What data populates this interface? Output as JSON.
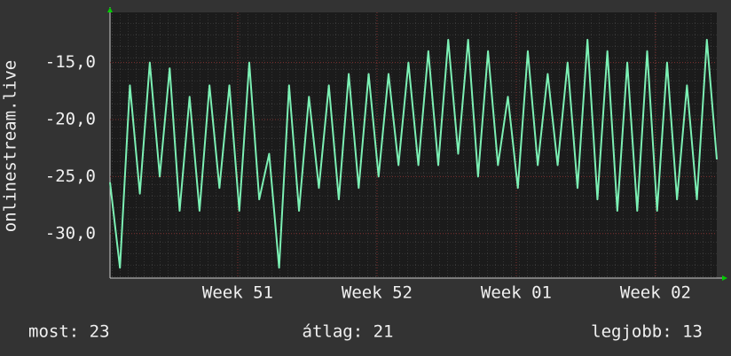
{
  "chart_data": {
    "type": "line",
    "ylabel": "onlinestream.live",
    "x": [
      0,
      0.5,
      1,
      1.5,
      2,
      2.5,
      3,
      3.5,
      4,
      4.5,
      5,
      5.5,
      6,
      6.5,
      7,
      7.5,
      8,
      8.5,
      9,
      9.5,
      10,
      10.5,
      11,
      11.5,
      12,
      12.5,
      13,
      13.5,
      14,
      14.5,
      15,
      15.5,
      16,
      16.5,
      17,
      17.5,
      18,
      18.5,
      19,
      19.5,
      20,
      20.5,
      21,
      21.5,
      22,
      22.5,
      23,
      23.5,
      24,
      24.5,
      25,
      25.5,
      26,
      26.5,
      27,
      27.5,
      28,
      28.5,
      29,
      29.5,
      30,
      30.5
    ],
    "series": [
      {
        "name": "onlinestream.live",
        "color": "#7cf0b4",
        "values": [
          -25.5,
          -33,
          -17,
          -26.5,
          -15,
          -25,
          -15.5,
          -28,
          -18,
          -28,
          -17,
          -26,
          -17,
          -28,
          -15,
          -27,
          -23,
          -33,
          -17,
          -28,
          -18,
          -26,
          -17,
          -27,
          -16,
          -26,
          -16,
          -25,
          -16,
          -24,
          -15,
          -24,
          -14,
          -24,
          -13,
          -23,
          -13,
          -25,
          -14,
          -24,
          -18,
          -26,
          -14,
          -24,
          -16,
          -24,
          -15,
          -26,
          -13,
          -27,
          -14,
          -28,
          -15,
          -28,
          -14,
          -28,
          -15,
          -27,
          -17,
          -27,
          -13,
          -23.5
        ]
      }
    ],
    "xlim": [
      0,
      30.5
    ],
    "xticks": [
      {
        "value": 6.42,
        "label": "Week 51"
      },
      {
        "value": 13.42,
        "label": "Week 52"
      },
      {
        "value": 20.42,
        "label": "Week 01"
      },
      {
        "value": 27.42,
        "label": "Week 02"
      }
    ],
    "ylim": [
      -33.9,
      -10.6
    ],
    "yticks": [
      {
        "value": -30,
        "label": "-30,0"
      },
      {
        "value": -25,
        "label": "-25,0"
      },
      {
        "value": -20,
        "label": "-20,0"
      },
      {
        "value": -15,
        "label": "-15,0"
      }
    ],
    "grid": true,
    "footer": [
      "most: 23",
      "átlag: 21",
      "legjobb: 13"
    ]
  }
}
